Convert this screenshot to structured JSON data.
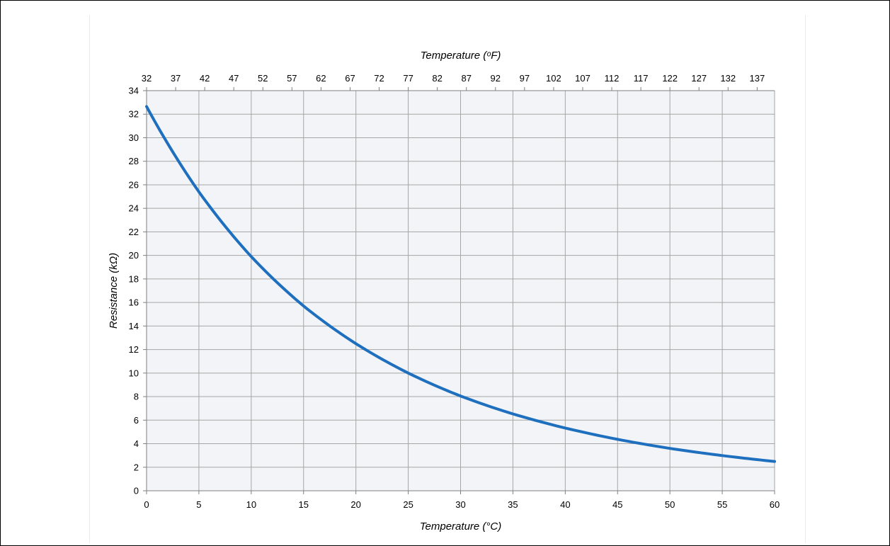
{
  "chart_data": {
    "type": "line",
    "title": "",
    "xlabel": "Temperature (°C)",
    "x2label": "Temperature (ᵒF)",
    "ylabel": "Resistance (kΩ)",
    "xlim": [
      0,
      60
    ],
    "ylim": [
      0,
      34
    ],
    "x_ticks": [
      0,
      5,
      10,
      15,
      20,
      25,
      30,
      35,
      40,
      45,
      50,
      55,
      60
    ],
    "x2_ticks": [
      32,
      37,
      42,
      47,
      52,
      57,
      62,
      67,
      72,
      77,
      82,
      87,
      92,
      97,
      102,
      107,
      112,
      117,
      122,
      127,
      132,
      137
    ],
    "y_ticks": [
      0,
      2,
      4,
      6,
      8,
      10,
      12,
      14,
      16,
      18,
      20,
      22,
      24,
      26,
      28,
      30,
      32,
      34
    ],
    "grid": true,
    "legend": "none",
    "series": [
      {
        "color": "#1f6fbf",
        "x": [
          0,
          5,
          10,
          15,
          20,
          25,
          30,
          35,
          40,
          45,
          50,
          55,
          60
        ],
        "y": [
          32.65,
          25.4,
          19.9,
          15.7,
          12.5,
          10.0,
          8.05,
          6.53,
          5.33,
          4.37,
          3.6,
          2.99,
          2.49
        ]
      }
    ]
  }
}
